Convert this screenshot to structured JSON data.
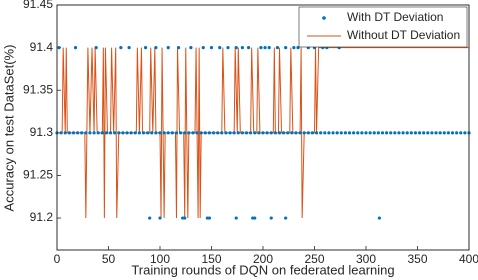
{
  "chart_data": {
    "type": "line-scatter",
    "xlabel": "Training rounds of DQN on federated learning",
    "ylabel": "Accuracy on test DataSet(%)",
    "xlim": [
      0,
      400
    ],
    "xticks": [
      0,
      50,
      100,
      150,
      200,
      250,
      300,
      350,
      400
    ],
    "ylim": [
      91.1625,
      91.45
    ],
    "yticks": [
      91.2,
      91.25,
      91.3,
      91.35,
      91.4,
      91.45
    ],
    "legend": "upper right",
    "series": [
      {
        "name": "With DT Deviation",
        "color": "#0072bd",
        "kind": "scatter",
        "x": [
          0,
          4,
          8,
          12,
          16,
          20,
          24,
          28,
          32,
          36,
          40,
          44,
          48,
          52,
          56,
          60,
          64,
          68,
          72,
          76,
          80,
          84,
          88,
          92,
          96,
          100,
          104,
          108,
          112,
          116,
          120,
          124,
          128,
          132,
          136,
          140,
          144,
          148,
          152,
          156,
          160,
          164,
          168,
          172,
          176,
          180,
          184,
          188,
          192,
          196,
          200,
          204,
          208,
          212,
          216,
          220,
          224,
          228,
          232,
          236,
          240,
          244,
          248,
          252,
          256,
          260,
          264,
          268,
          272,
          276,
          280,
          284,
          288,
          292,
          296,
          300,
          304,
          308,
          312,
          316,
          320,
          324,
          328,
          332,
          336,
          340,
          344,
          348,
          352,
          356,
          360,
          364,
          368,
          372,
          376,
          380,
          384,
          388,
          392,
          396,
          400,
          2,
          18,
          38,
          62,
          70,
          86,
          96,
          108,
          118,
          130,
          142,
          150,
          158,
          166,
          174,
          180,
          186,
          198,
          202,
          206,
          214,
          222,
          230,
          234,
          244,
          250,
          258,
          262,
          274,
          90,
          100,
          122,
          124,
          146,
          148,
          174,
          190,
          192,
          208,
          222,
          313
        ],
        "values": [
          91.3,
          91.3,
          91.3,
          91.3,
          91.3,
          91.3,
          91.3,
          91.3,
          91.3,
          91.3,
          91.3,
          91.3,
          91.3,
          91.3,
          91.3,
          91.3,
          91.3,
          91.3,
          91.3,
          91.3,
          91.3,
          91.3,
          91.3,
          91.3,
          91.3,
          91.3,
          91.3,
          91.3,
          91.3,
          91.3,
          91.3,
          91.3,
          91.3,
          91.3,
          91.3,
          91.3,
          91.3,
          91.3,
          91.3,
          91.3,
          91.3,
          91.3,
          91.3,
          91.3,
          91.3,
          91.3,
          91.3,
          91.3,
          91.3,
          91.3,
          91.3,
          91.3,
          91.3,
          91.3,
          91.3,
          91.3,
          91.3,
          91.3,
          91.3,
          91.3,
          91.3,
          91.3,
          91.3,
          91.3,
          91.3,
          91.3,
          91.3,
          91.3,
          91.3,
          91.3,
          91.3,
          91.3,
          91.3,
          91.3,
          91.3,
          91.3,
          91.3,
          91.3,
          91.3,
          91.3,
          91.3,
          91.3,
          91.3,
          91.3,
          91.3,
          91.3,
          91.3,
          91.3,
          91.3,
          91.3,
          91.3,
          91.3,
          91.3,
          91.3,
          91.3,
          91.3,
          91.3,
          91.3,
          91.3,
          91.3,
          91.3,
          91.4,
          91.4,
          91.4,
          91.4,
          91.4,
          91.4,
          91.4,
          91.4,
          91.4,
          91.4,
          91.4,
          91.4,
          91.4,
          91.4,
          91.4,
          91.4,
          91.4,
          91.4,
          91.4,
          91.4,
          91.4,
          91.4,
          91.4,
          91.4,
          91.4,
          91.4,
          91.4,
          91.4,
          91.4,
          91.2,
          91.2,
          91.2,
          91.2,
          91.2,
          91.2,
          91.2,
          91.2,
          91.2,
          91.2,
          91.2,
          91.2
        ]
      },
      {
        "name": "Without DT Deviation",
        "color": "#d95319",
        "kind": "line",
        "x": [
          0,
          5,
          6,
          8,
          9,
          10,
          27,
          28,
          30,
          32,
          34,
          36,
          37,
          39,
          44,
          45,
          46,
          47,
          49,
          52,
          53,
          55,
          57,
          58,
          60,
          77,
          78,
          80,
          82,
          83,
          90,
          91,
          93,
          95,
          96,
          100,
          101,
          102,
          104,
          105,
          115,
          116,
          117,
          119,
          123,
          124,
          125,
          127,
          128,
          134,
          135,
          137,
          138,
          139,
          140,
          160,
          161,
          163,
          172,
          173,
          175,
          176,
          178,
          188,
          189,
          191,
          194,
          195,
          197,
          210,
          211,
          212,
          215,
          216,
          218,
          226,
          227,
          229,
          236,
          237,
          238,
          240,
          250,
          251,
          252,
          254,
          400
        ],
        "values": [
          91.3,
          91.3,
          91.4,
          91.3,
          91.4,
          91.3,
          91.3,
          91.2,
          91.4,
          91.3,
          91.4,
          91.3,
          91.4,
          91.3,
          91.3,
          91.4,
          91.2,
          91.4,
          91.3,
          91.3,
          91.4,
          91.3,
          91.4,
          91.2,
          91.3,
          91.3,
          91.4,
          91.3,
          91.4,
          91.3,
          91.3,
          91.4,
          91.3,
          91.4,
          91.3,
          91.3,
          91.2,
          91.4,
          91.2,
          91.3,
          91.3,
          91.2,
          91.4,
          91.3,
          91.3,
          91.2,
          91.4,
          91.2,
          91.3,
          91.3,
          91.4,
          91.2,
          91.4,
          91.2,
          91.3,
          91.3,
          91.4,
          91.3,
          91.3,
          91.4,
          91.3,
          91.4,
          91.3,
          91.3,
          91.4,
          91.3,
          91.3,
          91.4,
          91.3,
          91.3,
          91.4,
          91.3,
          91.3,
          91.4,
          91.3,
          91.3,
          91.4,
          91.3,
          91.3,
          91.4,
          91.2,
          91.3,
          91.3,
          91.4,
          91.3,
          91.4,
          91.4
        ]
      }
    ]
  }
}
